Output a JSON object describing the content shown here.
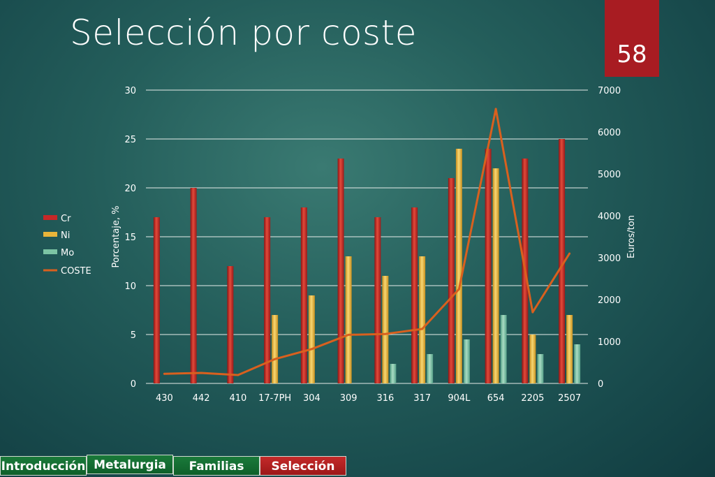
{
  "slide": {
    "title": "Selección por coste",
    "page_number": "58"
  },
  "tabs": [
    {
      "label": "Introducción",
      "active": false
    },
    {
      "label": "Metalurgia",
      "active": false
    },
    {
      "label": "Familias",
      "active": false
    },
    {
      "label": "Selección",
      "active": true
    }
  ],
  "colors": {
    "cr": "#c62828",
    "ni": "#e8b53a",
    "mo": "#7cc4a4",
    "coste": "#d9601e",
    "grid": "#e6ece9",
    "text": "#ffffff",
    "tab_active": "#b32020",
    "tab_inactive": "#137a3a"
  },
  "chart_data": {
    "type": "bar",
    "categories": [
      "430",
      "442",
      "410",
      "17-7PH",
      "304",
      "309",
      "316",
      "317",
      "904L",
      "654",
      "2205",
      "2507"
    ],
    "series": [
      {
        "name": "Cr",
        "type": "bar",
        "axis": "left",
        "values": [
          17,
          20,
          12,
          17,
          18,
          23,
          17,
          18,
          21,
          24,
          23,
          25
        ]
      },
      {
        "name": "Ni",
        "type": "bar",
        "axis": "left",
        "values": [
          0,
          0,
          0,
          7,
          9,
          13,
          11,
          13,
          24,
          22,
          5,
          7
        ]
      },
      {
        "name": "Mo",
        "type": "bar",
        "axis": "left",
        "values": [
          0,
          0,
          0,
          0,
          0,
          0,
          2,
          3,
          4.5,
          7,
          3,
          4
        ]
      },
      {
        "name": "COSTE",
        "type": "line",
        "axis": "right",
        "values": [
          230,
          250,
          200,
          580,
          820,
          1160,
          1180,
          1300,
          2250,
          6550,
          1700,
          3100
        ]
      }
    ],
    "ylabel": "Porcentaje, %",
    "y2label": "Euros/ton",
    "ylim": [
      0,
      30
    ],
    "y2lim": [
      0,
      7000
    ],
    "yticks": [
      "0",
      "5",
      "10",
      "15",
      "20",
      "25",
      "30"
    ],
    "y2ticks": [
      "0",
      "1000",
      "2000",
      "3000",
      "4000",
      "5000",
      "6000",
      "7000"
    ],
    "grid": true,
    "legend_position": "left"
  }
}
